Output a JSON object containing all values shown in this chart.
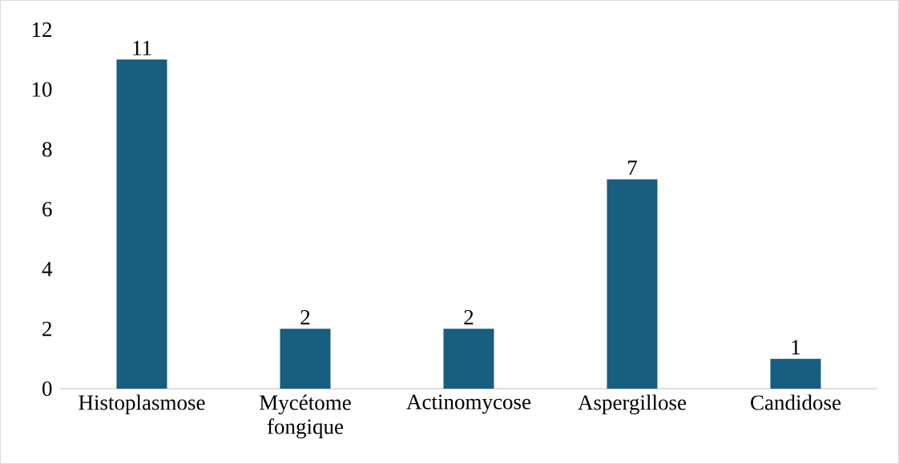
{
  "chart_data": {
    "type": "bar",
    "categories": [
      "Histoplasmose",
      "Mycétome fongique",
      "Actinomycose",
      "Aspergillose",
      "Candidose"
    ],
    "values": [
      11,
      2,
      2,
      7,
      1
    ],
    "color": "#175e7f",
    "ylim": [
      0,
      12
    ],
    "yticks": [
      0,
      2,
      4,
      6,
      8,
      10,
      12
    ],
    "data_labels": true
  }
}
